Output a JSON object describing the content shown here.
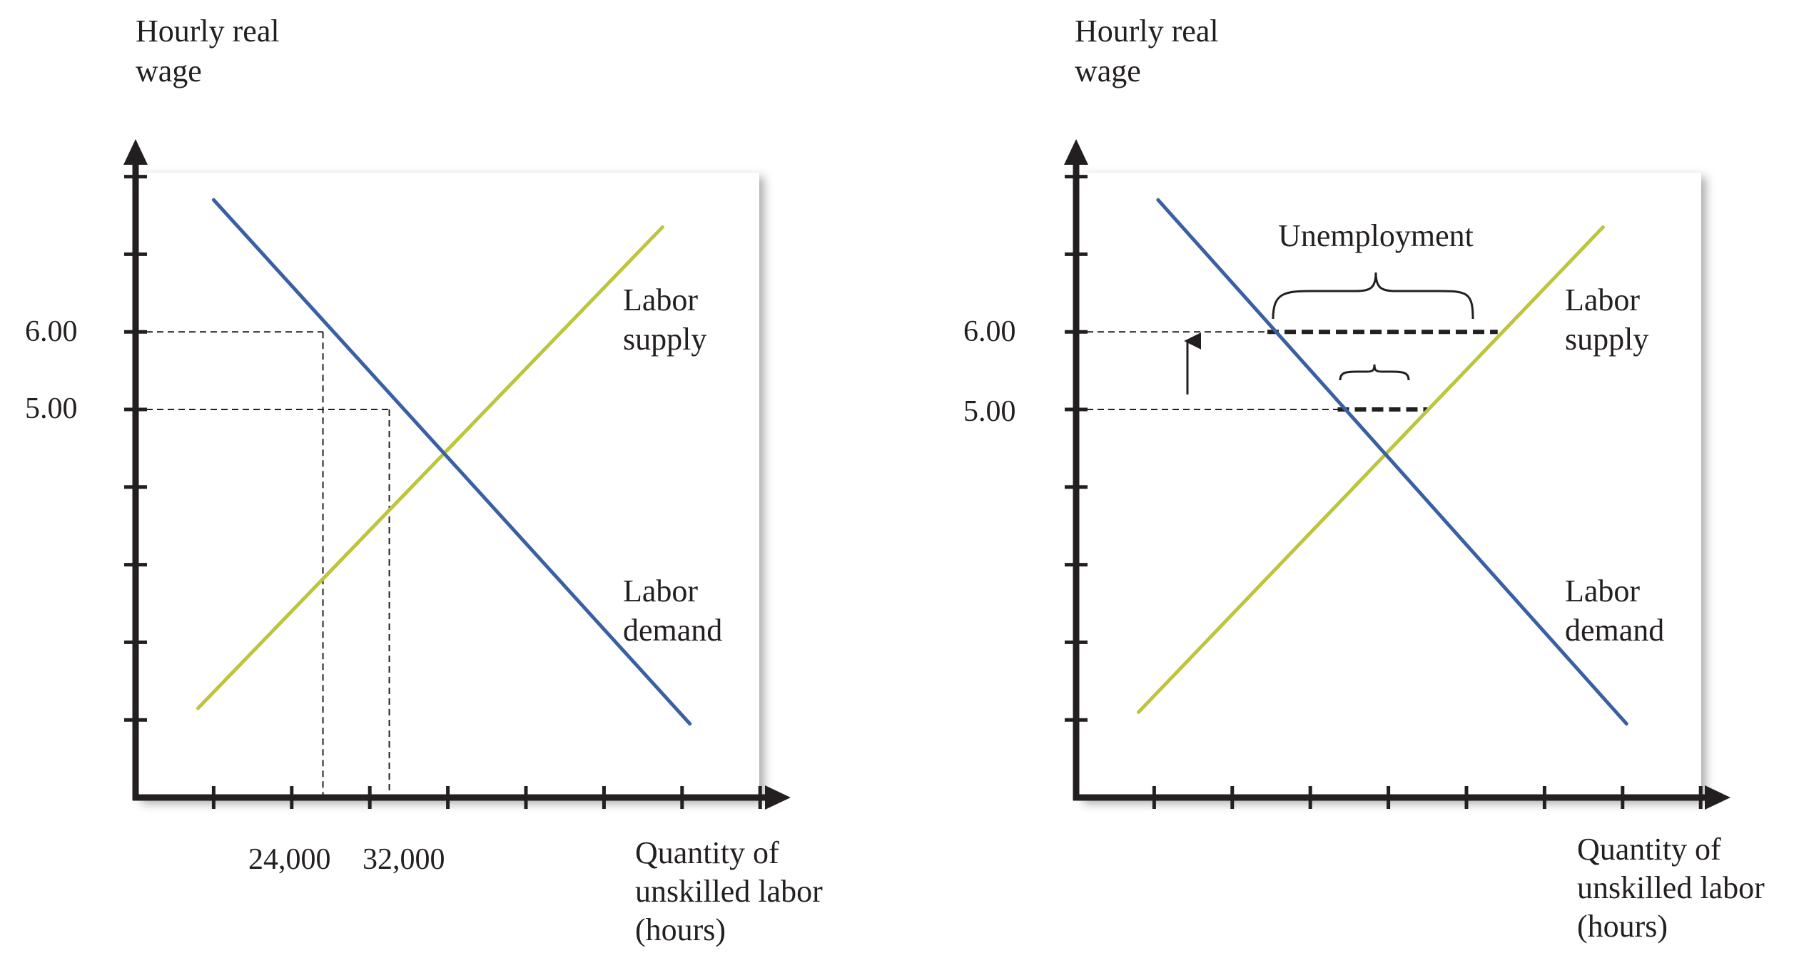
{
  "colors": {
    "supply": "#bcc63c",
    "demand": "#3a5fa3",
    "axis": "#231f20"
  },
  "chart_data": [
    {
      "type": "line",
      "title": "",
      "ylabel": [
        "Hourly real",
        "wage"
      ],
      "xlabel": [
        "Quantity of",
        "unskilled labor",
        "(hours)"
      ],
      "ylim": [
        0,
        8.6
      ],
      "xlim": [
        0,
        8.5
      ],
      "y_tick_labels": [
        {
          "value": 6.0,
          "label": "6.00"
        },
        {
          "value": 5.0,
          "label": "5.00"
        }
      ],
      "x_tick_labels": [
        {
          "value": 2.4,
          "label": "24,000"
        },
        {
          "value": 3.25,
          "label": "32,000"
        }
      ],
      "series": [
        {
          "name": "Labor supply",
          "label_lines": [
            "Labor",
            "supply"
          ],
          "color_key": "supply",
          "points": [
            [
              0.8,
              1.15
            ],
            [
              6.75,
              7.35
            ]
          ]
        },
        {
          "name": "Labor demand",
          "label_lines": [
            "Labor",
            "demand"
          ],
          "color_key": "demand",
          "points": [
            [
              1.0,
              7.7
            ],
            [
              7.1,
              0.95
            ]
          ]
        }
      ],
      "reference_lines": [
        {
          "y": 6.0,
          "x_end": 2.4
        },
        {
          "y": 5.0,
          "x_end": 3.25
        }
      ]
    },
    {
      "type": "line",
      "title": "",
      "ylabel": [
        "Hourly real",
        "wage"
      ],
      "xlabel": [
        "Quantity of",
        "unskilled labor",
        "(hours)"
      ],
      "ylim": [
        0,
        8.6
      ],
      "xlim": [
        0,
        8.5
      ],
      "y_tick_labels": [
        {
          "value": 6.0,
          "label": "6.00"
        },
        {
          "value": 5.0,
          "label": "5.00"
        }
      ],
      "x_tick_labels": [],
      "series": [
        {
          "name": "Labor supply",
          "label_lines": [
            "Labor",
            "supply"
          ],
          "color_key": "supply",
          "points": [
            [
              0.8,
              1.1
            ],
            [
              6.75,
              7.35
            ]
          ]
        },
        {
          "name": "Labor demand",
          "label_lines": [
            "Labor",
            "demand"
          ],
          "color_key": "demand",
          "points": [
            [
              1.05,
              7.7
            ],
            [
              7.05,
              0.95
            ]
          ]
        }
      ],
      "reference_lines": [
        {
          "y": 6.0,
          "x_end": 2.45
        },
        {
          "y": 5.0,
          "x_end": 3.35
        }
      ],
      "gaps": [
        {
          "y": 6.0,
          "x_start": 2.45,
          "x_end": 5.4
        },
        {
          "y": 5.0,
          "x_start": 3.35,
          "x_end": 4.5
        }
      ],
      "annotation": "Unemployment",
      "arrow": {
        "x": 1.5,
        "y_from": 5.2,
        "y_to": 6.0
      }
    }
  ]
}
